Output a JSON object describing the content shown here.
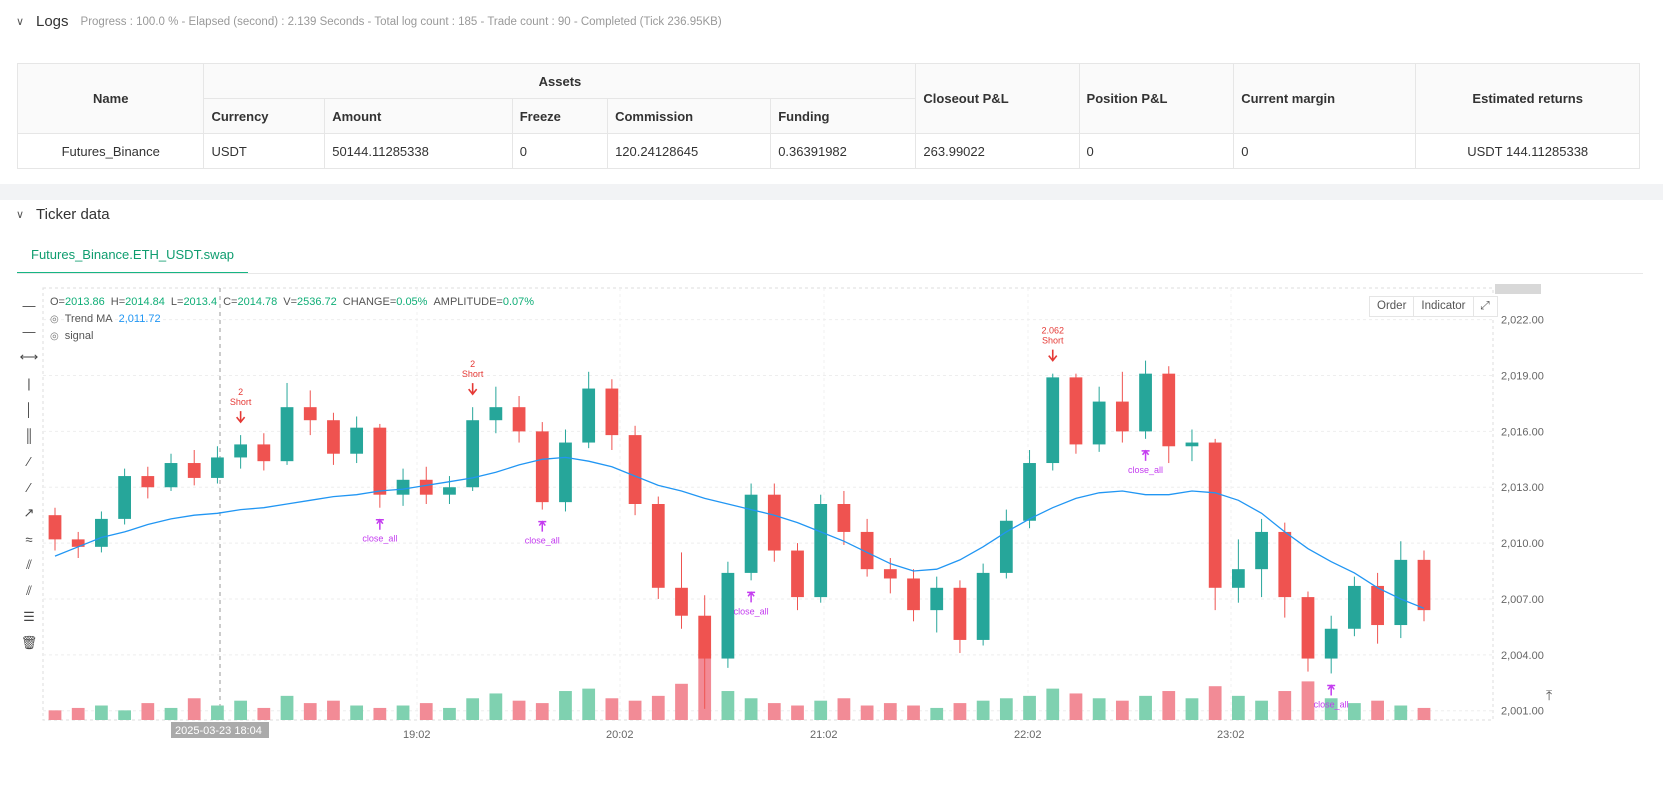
{
  "logs": {
    "title": "Logs",
    "meta": "Progress : 100.0 % - Elapsed (second) : 2.139 Seconds - Total log count : 185 - Trade count : 90 - Completed (Tick 236.95KB)"
  },
  "assets_table": {
    "headers": {
      "name": "Name",
      "assets": "Assets",
      "currency": "Currency",
      "amount": "Amount",
      "freeze": "Freeze",
      "commission": "Commission",
      "funding": "Funding",
      "closeout_pl": "Closeout P&L",
      "position_pl": "Position P&L",
      "current_margin": "Current margin",
      "estimated_returns": "Estimated returns"
    },
    "row": {
      "name": "Futures_Binance",
      "currency": "USDT",
      "amount": "50144.11285338",
      "freeze": "0",
      "commission": "120.24128645",
      "funding": "0.36391982",
      "closeout_pl": "263.99022",
      "position_pl": "0",
      "current_margin": "0",
      "estimated_returns": "USDT 144.11285338"
    }
  },
  "ticker": {
    "title": "Ticker data",
    "tab": "Futures_Binance.ETH_USDT.swap",
    "buttons": {
      "order": "Order",
      "indicator": "Indicator"
    },
    "legend": {
      "ohlc": [
        {
          "k": "O=",
          "v": "2013.86"
        },
        {
          "k": "H=",
          "v": "2014.84"
        },
        {
          "k": "L=",
          "v": "2013.4"
        },
        {
          "k": "C=",
          "v": "2014.78"
        },
        {
          "k": "V=",
          "v": "2536.72"
        },
        {
          "k": "CHANGE=",
          "v": "0.05%"
        },
        {
          "k": "AMPLITUDE=",
          "v": "0.07%"
        }
      ],
      "trend_ma_label": "Trend MA",
      "trend_ma_value": "2,011.72",
      "signal_label": "signal"
    },
    "tools": [
      "cursor-icon",
      "horizontal-line-icon",
      "horizontal-ray-icon",
      "vertical-line-icon",
      "vertical-segment-icon",
      "vertical-ray-icon",
      "trend-line-icon",
      "trend-ray-icon",
      "extended-line-icon",
      "price-range-icon",
      "parallel-channel-icon",
      "pitchfork-icon",
      "fibonacci-icon",
      "trash-icon"
    ]
  },
  "chart_data": {
    "type": "candlestick",
    "colors": {
      "up": "#26a69a",
      "down": "#ef5350",
      "up_vol": "#7fd1b0",
      "down_vol": "#f28b96",
      "ma": "#2196f3",
      "signal": "#c43cf0",
      "short": "#e53935",
      "long": "#2962ff"
    },
    "y_ticks": [
      "2,022.00",
      "2,019.00",
      "2,016.00",
      "2,013.00",
      "2,010.00",
      "2,007.00",
      "2,004.00",
      "2,001.00"
    ],
    "ylim": [
      2000.5,
      2023.7
    ],
    "x_ticks": [
      "19:02",
      "20:02",
      "21:02",
      "22:02",
      "23:02"
    ],
    "crosshair_time": "2025-03-23 18:04",
    "series": [
      {
        "name": "Trend MA",
        "values": [
          2009.3,
          2009.8,
          2010.3,
          2010.6,
          2011.0,
          2011.3,
          2011.5,
          2011.6,
          2011.8,
          2011.9,
          2012.1,
          2012.3,
          2012.5,
          2012.6,
          2012.8,
          2012.9,
          2013.1,
          2013.3,
          2013.5,
          2013.8,
          2014.2,
          2014.5,
          2014.6,
          2014.4,
          2014.1,
          2013.6,
          2013.1,
          2012.8,
          2012.4,
          2012.1,
          2011.8,
          2011.5,
          2011.1,
          2010.6,
          2010.1,
          2009.5,
          2008.9,
          2008.5,
          2008.6,
          2009.1,
          2009.8,
          2010.6,
          2011.3,
          2011.9,
          2012.4,
          2012.7,
          2012.8,
          2012.6,
          2012.6,
          2012.8,
          2012.7,
          2012.3,
          2011.6,
          2010.6,
          2009.7,
          2009.0,
          2008.4,
          2007.6,
          2007.0,
          2006.5
        ]
      }
    ],
    "candles": [
      [
        2011.5,
        2010.2,
        2011.9,
        2009.6
      ],
      [
        2010.2,
        2009.8,
        2010.6,
        2009.2
      ],
      [
        2009.8,
        2011.3,
        2011.7,
        2009.5
      ],
      [
        2011.3,
        2013.6,
        2014.0,
        2011.0
      ],
      [
        2013.6,
        2013.0,
        2014.1,
        2012.4
      ],
      [
        2013.0,
        2014.3,
        2014.8,
        2012.8
      ],
      [
        2014.3,
        2013.5,
        2015.0,
        2013.1
      ],
      [
        2013.5,
        2014.6,
        2015.2,
        2013.2
      ],
      [
        2014.6,
        2015.3,
        2015.8,
        2014.0
      ],
      [
        2015.3,
        2014.4,
        2015.9,
        2013.9
      ],
      [
        2014.4,
        2017.3,
        2018.6,
        2014.2
      ],
      [
        2017.3,
        2016.6,
        2018.2,
        2015.8
      ],
      [
        2016.6,
        2014.8,
        2017.0,
        2014.2
      ],
      [
        2014.8,
        2016.2,
        2016.8,
        2014.3
      ],
      [
        2016.2,
        2012.6,
        2016.4,
        2011.9
      ],
      [
        2012.6,
        2013.4,
        2014.0,
        2012.0
      ],
      [
        2013.4,
        2012.6,
        2014.1,
        2012.1
      ],
      [
        2012.6,
        2013.0,
        2013.6,
        2012.1
      ],
      [
        2013.0,
        2016.6,
        2017.3,
        2012.8
      ],
      [
        2016.6,
        2017.3,
        2018.4,
        2015.9
      ],
      [
        2017.3,
        2016.0,
        2017.9,
        2015.4
      ],
      [
        2016.0,
        2012.2,
        2016.5,
        2011.8
      ],
      [
        2012.2,
        2015.4,
        2016.1,
        2011.7
      ],
      [
        2015.4,
        2018.3,
        2019.2,
        2015.1
      ],
      [
        2018.3,
        2015.8,
        2018.8,
        2015.0
      ],
      [
        2015.8,
        2012.1,
        2016.3,
        2011.5
      ],
      [
        2012.1,
        2007.6,
        2012.5,
        2007.0
      ],
      [
        2007.6,
        2006.1,
        2009.5,
        2005.4
      ],
      [
        2006.1,
        2003.8,
        2007.2,
        2001.1
      ],
      [
        2003.8,
        2008.4,
        2009.0,
        2003.3
      ],
      [
        2008.4,
        2012.6,
        2013.2,
        2008.0
      ],
      [
        2012.6,
        2009.6,
        2013.2,
        2009.0
      ],
      [
        2009.6,
        2007.1,
        2010.0,
        2006.4
      ],
      [
        2007.1,
        2012.1,
        2012.6,
        2006.8
      ],
      [
        2012.1,
        2010.6,
        2012.8,
        2009.9
      ],
      [
        2010.6,
        2008.6,
        2011.3,
        2008.2
      ],
      [
        2008.6,
        2008.1,
        2009.2,
        2007.3
      ],
      [
        2008.1,
        2006.4,
        2008.6,
        2005.8
      ],
      [
        2006.4,
        2007.6,
        2008.2,
        2005.2
      ],
      [
        2007.6,
        2004.8,
        2008.0,
        2004.1
      ],
      [
        2004.8,
        2008.4,
        2008.9,
        2004.5
      ],
      [
        2008.4,
        2011.2,
        2011.8,
        2008.1
      ],
      [
        2011.2,
        2014.3,
        2015.0,
        2010.8
      ],
      [
        2014.3,
        2018.9,
        2019.1,
        2013.9
      ],
      [
        2018.9,
        2015.3,
        2019.1,
        2014.8
      ],
      [
        2015.3,
        2017.6,
        2018.4,
        2014.9
      ],
      [
        2017.6,
        2016.0,
        2019.2,
        2015.4
      ],
      [
        2016.0,
        2019.1,
        2019.8,
        2015.6
      ],
      [
        2019.1,
        2015.2,
        2019.5,
        2014.3
      ],
      [
        2015.2,
        2015.4,
        2016.1,
        2014.4
      ],
      [
        2015.4,
        2007.6,
        2015.6,
        2006.4
      ],
      [
        2007.6,
        2008.6,
        2010.2,
        2006.8
      ],
      [
        2008.6,
        2010.6,
        2011.3,
        2007.1
      ],
      [
        2010.6,
        2007.1,
        2011.1,
        2006.0
      ],
      [
        2007.1,
        2003.8,
        2007.4,
        2003.1
      ],
      [
        2003.8,
        2005.4,
        2006.1,
        2003.0
      ],
      [
        2005.4,
        2007.7,
        2008.2,
        2005.0
      ],
      [
        2007.7,
        2005.6,
        2008.4,
        2004.6
      ],
      [
        2005.6,
        2009.1,
        2010.1,
        2004.9
      ],
      [
        2009.1,
        2006.4,
        2009.6,
        2005.8
      ]
    ],
    "volumes": [
      0.4,
      0.5,
      0.6,
      0.4,
      0.7,
      0.5,
      0.9,
      0.6,
      0.8,
      0.5,
      1.0,
      0.7,
      0.8,
      0.6,
      0.5,
      0.6,
      0.7,
      0.5,
      0.9,
      1.1,
      0.8,
      0.7,
      1.2,
      1.3,
      0.9,
      0.8,
      1.0,
      1.5,
      2.9,
      1.2,
      0.9,
      0.7,
      0.6,
      0.8,
      0.9,
      0.6,
      0.7,
      0.6,
      0.5,
      0.7,
      0.8,
      0.9,
      1.0,
      1.3,
      1.1,
      0.9,
      0.8,
      1.0,
      1.2,
      0.9,
      1.4,
      1.0,
      0.8,
      1.2,
      1.6,
      0.9,
      0.7,
      0.8,
      0.6,
      0.5
    ],
    "markers": [
      {
        "i": 8,
        "type": "short",
        "label": "Short",
        "qty": "2"
      },
      {
        "i": 18,
        "type": "short",
        "label": "Short",
        "qty": "2"
      },
      {
        "i": 14,
        "type": "close",
        "label": "close_all"
      },
      {
        "i": 21,
        "type": "close",
        "label": "close_all"
      },
      {
        "i": 30,
        "type": "close",
        "label": "close_all"
      },
      {
        "i": 43,
        "type": "short",
        "label": "Short",
        "qty": "2.062"
      },
      {
        "i": 47,
        "type": "close",
        "label": "close_all"
      },
      {
        "i": 55,
        "type": "close",
        "label": "close_all"
      }
    ]
  }
}
